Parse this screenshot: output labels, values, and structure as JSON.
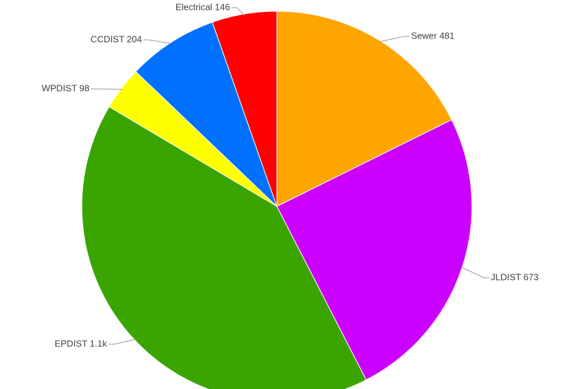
{
  "chart_data": {
    "type": "pie",
    "slices": [
      {
        "label": "Sewer",
        "display_value": "481",
        "value": 481,
        "color": "#FFA500"
      },
      {
        "label": "JLDIST",
        "display_value": "673",
        "value": 673,
        "color": "#CC00FF"
      },
      {
        "label": "EPDIST",
        "display_value": "1.1k",
        "value": 1118,
        "color": "#3AA500"
      },
      {
        "label": "WPDIST",
        "display_value": "98",
        "value": 98,
        "color": "#FFFF00"
      },
      {
        "label": "CCDIST",
        "display_value": "204",
        "value": 204,
        "color": "#0070FF"
      },
      {
        "label": "Electrical",
        "display_value": "146",
        "value": 146,
        "color": "#FF0000"
      }
    ]
  }
}
